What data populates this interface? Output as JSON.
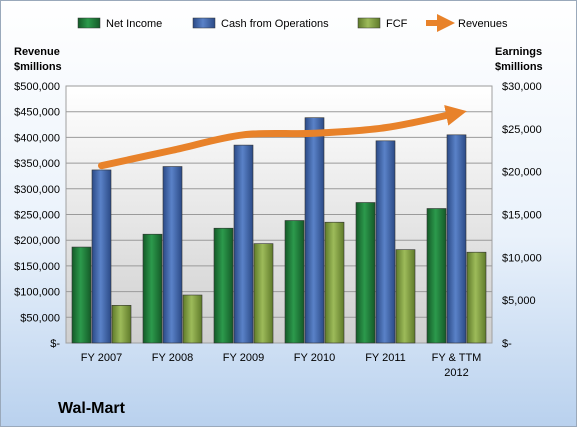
{
  "company": "Wal-Mart",
  "chart_data": {
    "type": "bar",
    "categories": [
      "FY 2007",
      "FY 2008",
      "FY 2009",
      "FY 2010",
      "FY 2011",
      "FY & TTM 2012"
    ],
    "series": [
      {
        "name": "Net Income",
        "axis": "right",
        "color": "#1e7a3a",
        "values": [
          11200,
          12700,
          13400,
          14300,
          16400,
          15700
        ]
      },
      {
        "name": "Cash from Operations",
        "axis": "right",
        "color": "#3f64a8",
        "values": [
          20200,
          20600,
          23100,
          26300,
          23600,
          24300
        ]
      },
      {
        "name": "FCF",
        "axis": "right",
        "color": "#86a345",
        "values": [
          4400,
          5600,
          11600,
          14100,
          10900,
          10600
        ]
      },
      {
        "name": "Revenues",
        "axis": "left",
        "type": "line",
        "color": "#e8822a",
        "values": [
          345000,
          375000,
          405000,
          408000,
          419000,
          447000
        ]
      }
    ],
    "ylabel_left": "Revenue $millions",
    "ylabel_right": "Earnings $millions",
    "ylim_left": [
      0,
      500000
    ],
    "ylim_right": [
      0,
      30000
    ],
    "yticks_left": [
      "$-",
      "$50,000",
      "$100,000",
      "$150,000",
      "$200,000",
      "$250,000",
      "$300,000",
      "$350,000",
      "$400,000",
      "$450,000",
      "$500,000"
    ],
    "yticks_right": [
      "$-",
      "$5,000",
      "$10,000",
      "$15,000",
      "$20,000",
      "$25,000",
      "$30,000"
    ],
    "legend_position": "top",
    "grid": true
  }
}
